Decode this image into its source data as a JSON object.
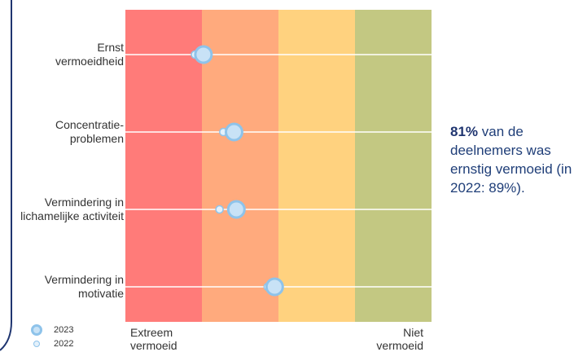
{
  "chart_data": {
    "type": "scatter",
    "categories": [
      "Ernst\nvermoeidheid",
      "Concentratie-\nproblemen",
      "Vermindering in\nlichamelijke activiteit",
      "Vermindering in\nmotivatie"
    ],
    "xlim": [
      0,
      4
    ],
    "bands": [
      {
        "from": 0,
        "to": 1,
        "color": "#ff7b79"
      },
      {
        "from": 1,
        "to": 2,
        "color": "#ffaa7d"
      },
      {
        "from": 2,
        "to": 3,
        "color": "#ffd27f"
      },
      {
        "from": 3,
        "to": 4,
        "color": "#c3c882"
      }
    ],
    "series": [
      {
        "name": "2023",
        "values": [
          1.02,
          1.42,
          1.45,
          1.95
        ]
      },
      {
        "name": "2022",
        "values": [
          0.91,
          1.28,
          1.23,
          1.86
        ]
      }
    ],
    "xlabel_left": "Extreem\nvermoeid",
    "xlabel_right": "Niet\nvermoeid"
  },
  "callout": {
    "pct": "81%",
    "text": " van de deelnemers was ernstig vermoeid (in 2022: 89%)."
  },
  "colors": {
    "marker_2023_fill": "#c8e2f6",
    "marker_2023_stroke": "#8ec3ea",
    "marker_2022_fill": "#e4f1fb",
    "callout_text": "#1f3e78",
    "frame_curve": "#1f3570"
  }
}
